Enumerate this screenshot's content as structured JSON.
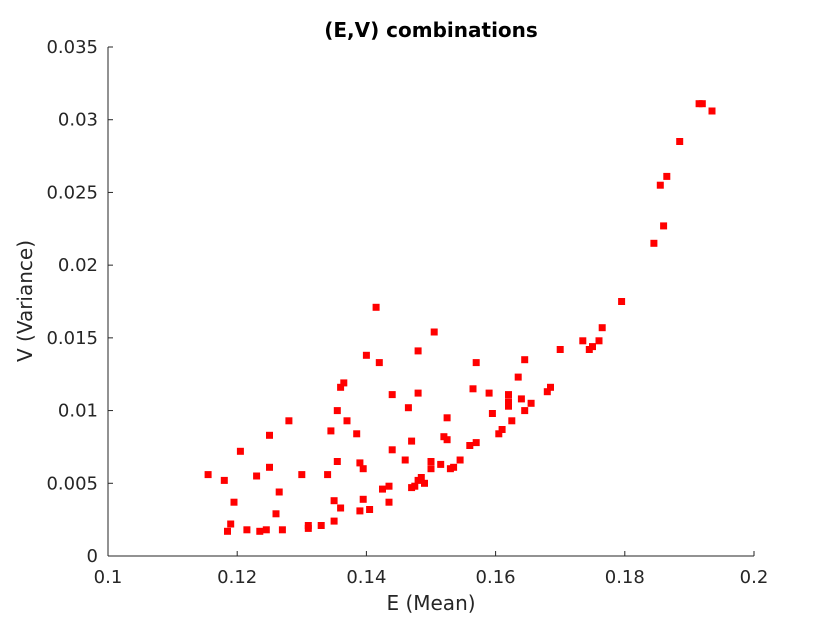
{
  "chart_data": {
    "type": "scatter",
    "title": "(E,V) combinations",
    "xlabel": "E (Mean)",
    "ylabel": "V (Variance)",
    "xlim": [
      0.1,
      0.2
    ],
    "ylim": [
      0,
      0.035
    ],
    "xticks": [
      0.1,
      0.12,
      0.14,
      0.16,
      0.18,
      0.2
    ],
    "xtick_labels": [
      "0.1",
      "0.12",
      "0.14",
      "0.16",
      "0.18",
      "0.2"
    ],
    "yticks": [
      0,
      0.005,
      0.01,
      0.015,
      0.02,
      0.025,
      0.03,
      0.035
    ],
    "ytick_labels": [
      "0",
      "0.005",
      "0.01",
      "0.015",
      "0.02",
      "0.025",
      "0.03",
      "0.035"
    ],
    "grid": false,
    "marker": "square",
    "color": "#ff0000",
    "points": [
      [
        0.1155,
        0.0056
      ],
      [
        0.118,
        0.0052
      ],
      [
        0.1185,
        0.0017
      ],
      [
        0.119,
        0.0022
      ],
      [
        0.1195,
        0.0037
      ],
      [
        0.1205,
        0.0072
      ],
      [
        0.1215,
        0.0018
      ],
      [
        0.123,
        0.0055
      ],
      [
        0.1235,
        0.0017
      ],
      [
        0.1245,
        0.0018
      ],
      [
        0.125,
        0.0083
      ],
      [
        0.125,
        0.0061
      ],
      [
        0.126,
        0.0029
      ],
      [
        0.1265,
        0.0044
      ],
      [
        0.127,
        0.0018
      ],
      [
        0.128,
        0.0093
      ],
      [
        0.13,
        0.0056
      ],
      [
        0.131,
        0.0021
      ],
      [
        0.131,
        0.0019
      ],
      [
        0.133,
        0.0021
      ],
      [
        0.134,
        0.0056
      ],
      [
        0.1345,
        0.0086
      ],
      [
        0.135,
        0.0024
      ],
      [
        0.135,
        0.0038
      ],
      [
        0.1355,
        0.01
      ],
      [
        0.1355,
        0.0065
      ],
      [
        0.136,
        0.0033
      ],
      [
        0.136,
        0.0116
      ],
      [
        0.1365,
        0.0119
      ],
      [
        0.137,
        0.0093
      ],
      [
        0.1385,
        0.0084
      ],
      [
        0.139,
        0.0031
      ],
      [
        0.139,
        0.0064
      ],
      [
        0.1395,
        0.006
      ],
      [
        0.1395,
        0.0039
      ],
      [
        0.14,
        0.0138
      ],
      [
        0.1405,
        0.0032
      ],
      [
        0.1415,
        0.0171
      ],
      [
        0.142,
        0.0133
      ],
      [
        0.1425,
        0.0046
      ],
      [
        0.1435,
        0.0048
      ],
      [
        0.1435,
        0.0037
      ],
      [
        0.144,
        0.0073
      ],
      [
        0.144,
        0.0111
      ],
      [
        0.146,
        0.0066
      ],
      [
        0.1465,
        0.0102
      ],
      [
        0.147,
        0.0079
      ],
      [
        0.147,
        0.0047
      ],
      [
        0.1475,
        0.0048
      ],
      [
        0.148,
        0.0141
      ],
      [
        0.148,
        0.0112
      ],
      [
        0.148,
        0.0052
      ],
      [
        0.1485,
        0.0054
      ],
      [
        0.149,
        0.005
      ],
      [
        0.15,
        0.0065
      ],
      [
        0.15,
        0.006
      ],
      [
        0.1505,
        0.0154
      ],
      [
        0.1515,
        0.0063
      ],
      [
        0.152,
        0.0082
      ],
      [
        0.1525,
        0.008
      ],
      [
        0.1525,
        0.0095
      ],
      [
        0.153,
        0.006
      ],
      [
        0.1535,
        0.0061
      ],
      [
        0.1545,
        0.0066
      ],
      [
        0.156,
        0.0076
      ],
      [
        0.1565,
        0.0115
      ],
      [
        0.157,
        0.0078
      ],
      [
        0.157,
        0.0133
      ],
      [
        0.159,
        0.0112
      ],
      [
        0.1595,
        0.0098
      ],
      [
        0.1605,
        0.0084
      ],
      [
        0.161,
        0.0087
      ],
      [
        0.162,
        0.0111
      ],
      [
        0.162,
        0.0106
      ],
      [
        0.162,
        0.0103
      ],
      [
        0.1625,
        0.0093
      ],
      [
        0.1635,
        0.0123
      ],
      [
        0.164,
        0.0108
      ],
      [
        0.1645,
        0.0135
      ],
      [
        0.1645,
        0.01
      ],
      [
        0.1655,
        0.0105
      ],
      [
        0.168,
        0.0113
      ],
      [
        0.1685,
        0.0116
      ],
      [
        0.17,
        0.0142
      ],
      [
        0.1735,
        0.0148
      ],
      [
        0.1745,
        0.0142
      ],
      [
        0.175,
        0.0144
      ],
      [
        0.176,
        0.0148
      ],
      [
        0.1765,
        0.0157
      ],
      [
        0.1795,
        0.0175
      ],
      [
        0.1845,
        0.0215
      ],
      [
        0.1855,
        0.0255
      ],
      [
        0.186,
        0.0227
      ],
      [
        0.1865,
        0.0261
      ],
      [
        0.1885,
        0.0285
      ],
      [
        0.1915,
        0.0311
      ],
      [
        0.192,
        0.0311
      ],
      [
        0.1935,
        0.0306
      ]
    ]
  }
}
